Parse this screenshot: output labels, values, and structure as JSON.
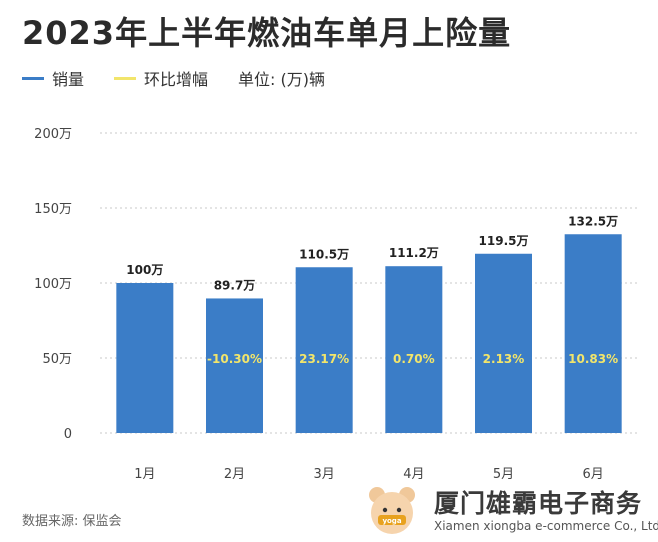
{
  "title": "2023年上半年燃油车单月上险量",
  "legend": {
    "sales_label": "销量",
    "growth_label": "环比增幅",
    "unit_label": "单位: (万)辆",
    "sales_color": "#3b7dc7",
    "growth_color": "#f2e56b"
  },
  "source": "数据来源: 保监会",
  "watermark": {
    "logo_text": "yoga",
    "company_name": "厦门雄霸电子商务",
    "company_english": "Xiamen xiongba e-commerce Co., Ltd"
  },
  "chart_data": {
    "type": "bar",
    "title": "2023年上半年燃油车单月上险量",
    "categories": [
      "1月",
      "2月",
      "3月",
      "4月",
      "5月",
      "6月"
    ],
    "series": [
      {
        "name": "销量",
        "values": [
          100,
          89.7,
          110.5,
          111.2,
          119.5,
          132.5
        ]
      },
      {
        "name": "环比增幅",
        "values": [
          null,
          -10.3,
          23.17,
          0.7,
          2.13,
          10.83
        ]
      }
    ],
    "value_labels": [
      "100万",
      "89.7万",
      "110.5万",
      "111.2万",
      "119.5万",
      "132.5万"
    ],
    "growth_labels": [
      "",
      "-10.30%",
      "23.17%",
      "0.70%",
      "2.13%",
      "10.83%"
    ],
    "yticks": [
      0,
      50,
      100,
      150,
      200
    ],
    "ytick_labels": [
      "0",
      "50万",
      "100万",
      "150万",
      "200万"
    ],
    "ylim": [
      0,
      200
    ],
    "grid": true,
    "legend_position": "top-left",
    "bar_color": "#3b7dc7",
    "growth_color": "#f2e56b"
  }
}
